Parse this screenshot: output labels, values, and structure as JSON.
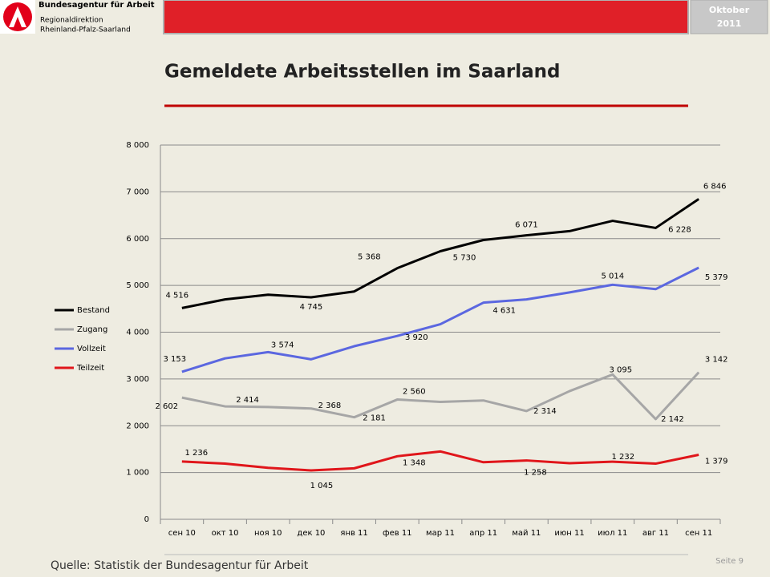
{
  "header": {
    "org": "Bundesagentur für Arbeit",
    "division": "Regionaldirektion",
    "region": "Rheinland-Pfalz-Saarland",
    "month": "Oktober",
    "year": "2011"
  },
  "chart_data": {
    "type": "line",
    "title": "Gemeldete Arbeitsstellen im Saarland",
    "categories": [
      "сен 10",
      "окт 10",
      "ноя 10",
      "дек 10",
      "янв 11",
      "фев 11",
      "мар 11",
      "апр 11",
      "май 11",
      "июн 11",
      "июл 11",
      "авг 11",
      "сен 11"
    ],
    "series": [
      {
        "name": "Bestand",
        "color": "#000000",
        "values": [
          4516,
          4700,
          4800,
          4745,
          4870,
          5368,
          5730,
          5970,
          6071,
          6160,
          6380,
          6228,
          6846
        ],
        "value_labels": [
          "4 516",
          null,
          null,
          "4 745",
          null,
          "5 368",
          "5 730",
          null,
          "6 071",
          null,
          null,
          "6 228",
          "6 846"
        ]
      },
      {
        "name": "Zugang",
        "color": "#a6a6a6",
        "values": [
          2602,
          2414,
          2400,
          2368,
          2181,
          2560,
          2510,
          2540,
          2314,
          2740,
          3095,
          2142,
          3142
        ],
        "value_labels": [
          "2 602",
          "2 414",
          null,
          "2 368",
          "2 181",
          "2 560",
          null,
          null,
          "2 314",
          null,
          "3 095",
          "2 142",
          "3 142"
        ]
      },
      {
        "name": "Vollzeit",
        "color": "#5b67e0",
        "values": [
          3153,
          3440,
          3574,
          3420,
          3700,
          3920,
          4170,
          4631,
          4700,
          4850,
          5014,
          4920,
          5379
        ],
        "value_labels": [
          "3 153",
          null,
          "3 574",
          null,
          null,
          "3 920",
          null,
          "4 631",
          null,
          null,
          "5 014",
          null,
          "5 379"
        ]
      },
      {
        "name": "Teilzeit",
        "color": "#e0161b",
        "values": [
          1236,
          1190,
          1100,
          1045,
          1090,
          1348,
          1450,
          1220,
          1258,
          1200,
          1232,
          1190,
          1379
        ],
        "value_labels": [
          "1 236",
          null,
          null,
          "1 045",
          null,
          "1 348",
          null,
          null,
          "1 258",
          null,
          "1 232",
          null,
          "1 379"
        ]
      }
    ],
    "ylim": [
      0,
      8000
    ],
    "yticks": [
      0,
      {
        "value": 1000,
        "label": "1 000"
      },
      {
        "value": 2000,
        "label": "2 000"
      },
      {
        "value": 3000,
        "label": "3 000"
      },
      {
        "value": 4000,
        "label": "4 000"
      },
      {
        "value": 5000,
        "label": "5 000"
      },
      {
        "value": 6000,
        "label": "6 000"
      },
      {
        "value": 7000,
        "label": "7 000"
      },
      {
        "value": 8000,
        "label": "8 000"
      }
    ],
    "grid": true,
    "legend": "left"
  },
  "footer": {
    "source": "Quelle: Statistik der Bundesagentur für Arbeit",
    "page": "Seite 9"
  }
}
